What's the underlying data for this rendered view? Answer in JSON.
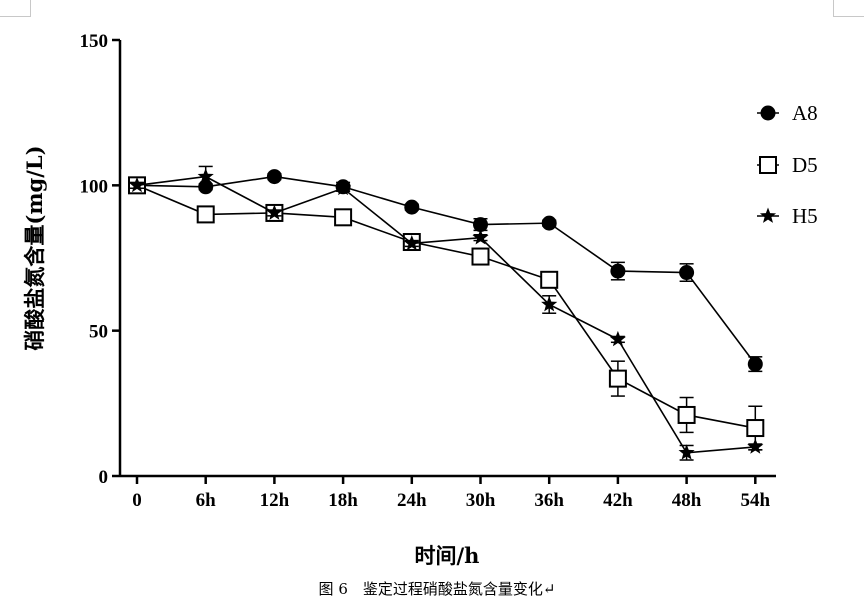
{
  "chart_data": {
    "type": "line",
    "caption": "图 6　鉴定过程硝酸盐氮含量变化↵",
    "xlabel": "时间/h",
    "ylabel": "硝酸盐氮含量(mg/L)",
    "categories": [
      "0",
      "6h",
      "12h",
      "18h",
      "24h",
      "30h",
      "36h",
      "42h",
      "48h",
      "54h"
    ],
    "ylim": [
      0,
      150
    ],
    "yticks": [
      0,
      50,
      100,
      150
    ],
    "ytick_labels": [
      "0",
      "50",
      "100",
      "150"
    ],
    "grid": false,
    "legend_position": "right",
    "series": [
      {
        "name": "A8",
        "marker": "circle-filled",
        "values": [
          100,
          99.5,
          103,
          99.5,
          92.5,
          86.5,
          87,
          70.5,
          70,
          38.5
        ],
        "errors": [
          1,
          1,
          1,
          1.5,
          1,
          2,
          1,
          3,
          3,
          2.5
        ]
      },
      {
        "name": "D5",
        "marker": "square-open",
        "values": [
          100,
          90,
          90.5,
          89,
          80.5,
          75.5,
          67.5,
          33.5,
          21,
          16.5
        ],
        "errors": [
          1,
          1,
          1,
          1,
          1,
          1,
          2,
          6,
          6,
          7.5
        ]
      },
      {
        "name": "H5",
        "marker": "star-filled",
        "values": [
          100,
          103,
          90.5,
          99,
          80,
          82,
          59,
          47,
          8,
          10
        ],
        "errors": [
          1,
          3.5,
          1,
          1,
          1,
          1,
          3,
          1,
          2.5,
          1
        ]
      }
    ]
  }
}
